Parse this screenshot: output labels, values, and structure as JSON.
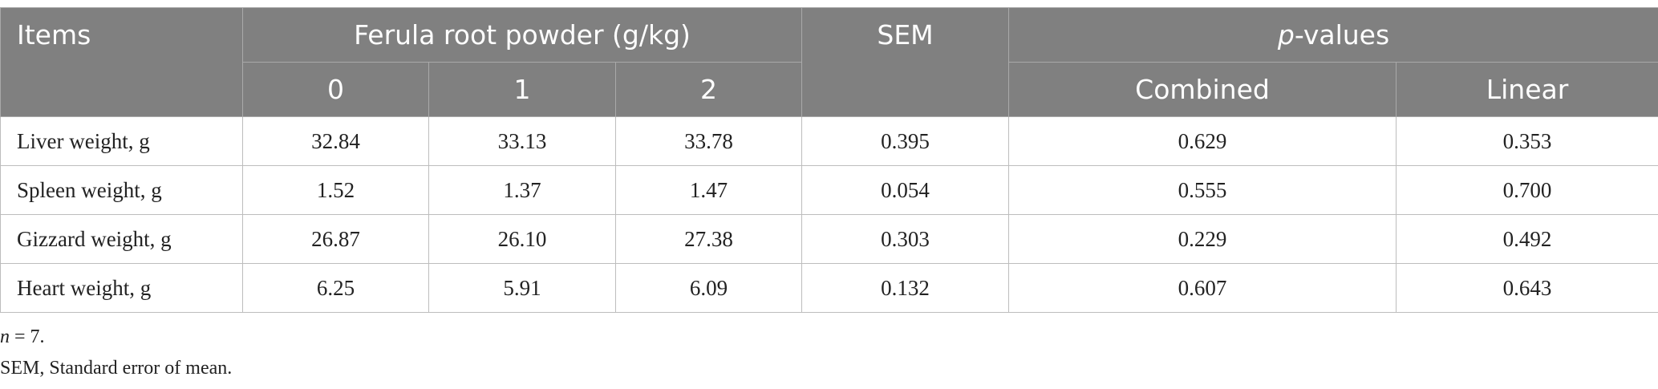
{
  "table": {
    "header": {
      "items": "Items",
      "group": "Ferula root powder (g/kg)",
      "sem": "SEM",
      "pvalues": "p-values",
      "levels": [
        "0",
        "1",
        "2"
      ],
      "tests": [
        "Combined",
        "Linear"
      ]
    },
    "rows": [
      [
        "Liver weight, g",
        "32.84",
        "33.13",
        "33.78",
        "0.395",
        "0.629",
        "0.353"
      ],
      [
        "Spleen weight, g",
        "1.52",
        "1.37",
        "1.47",
        "0.054",
        "0.555",
        "0.700"
      ],
      [
        "Gizzard weight, g",
        "26.87",
        "26.10",
        "27.38",
        "0.303",
        "0.229",
        "0.492"
      ],
      [
        "Heart weight, g",
        "6.25",
        "5.91",
        "6.09",
        "0.132",
        "0.607",
        "0.643"
      ]
    ]
  },
  "footnotes": [
    "n = 7.",
    "SEM, Standard error of mean."
  ]
}
